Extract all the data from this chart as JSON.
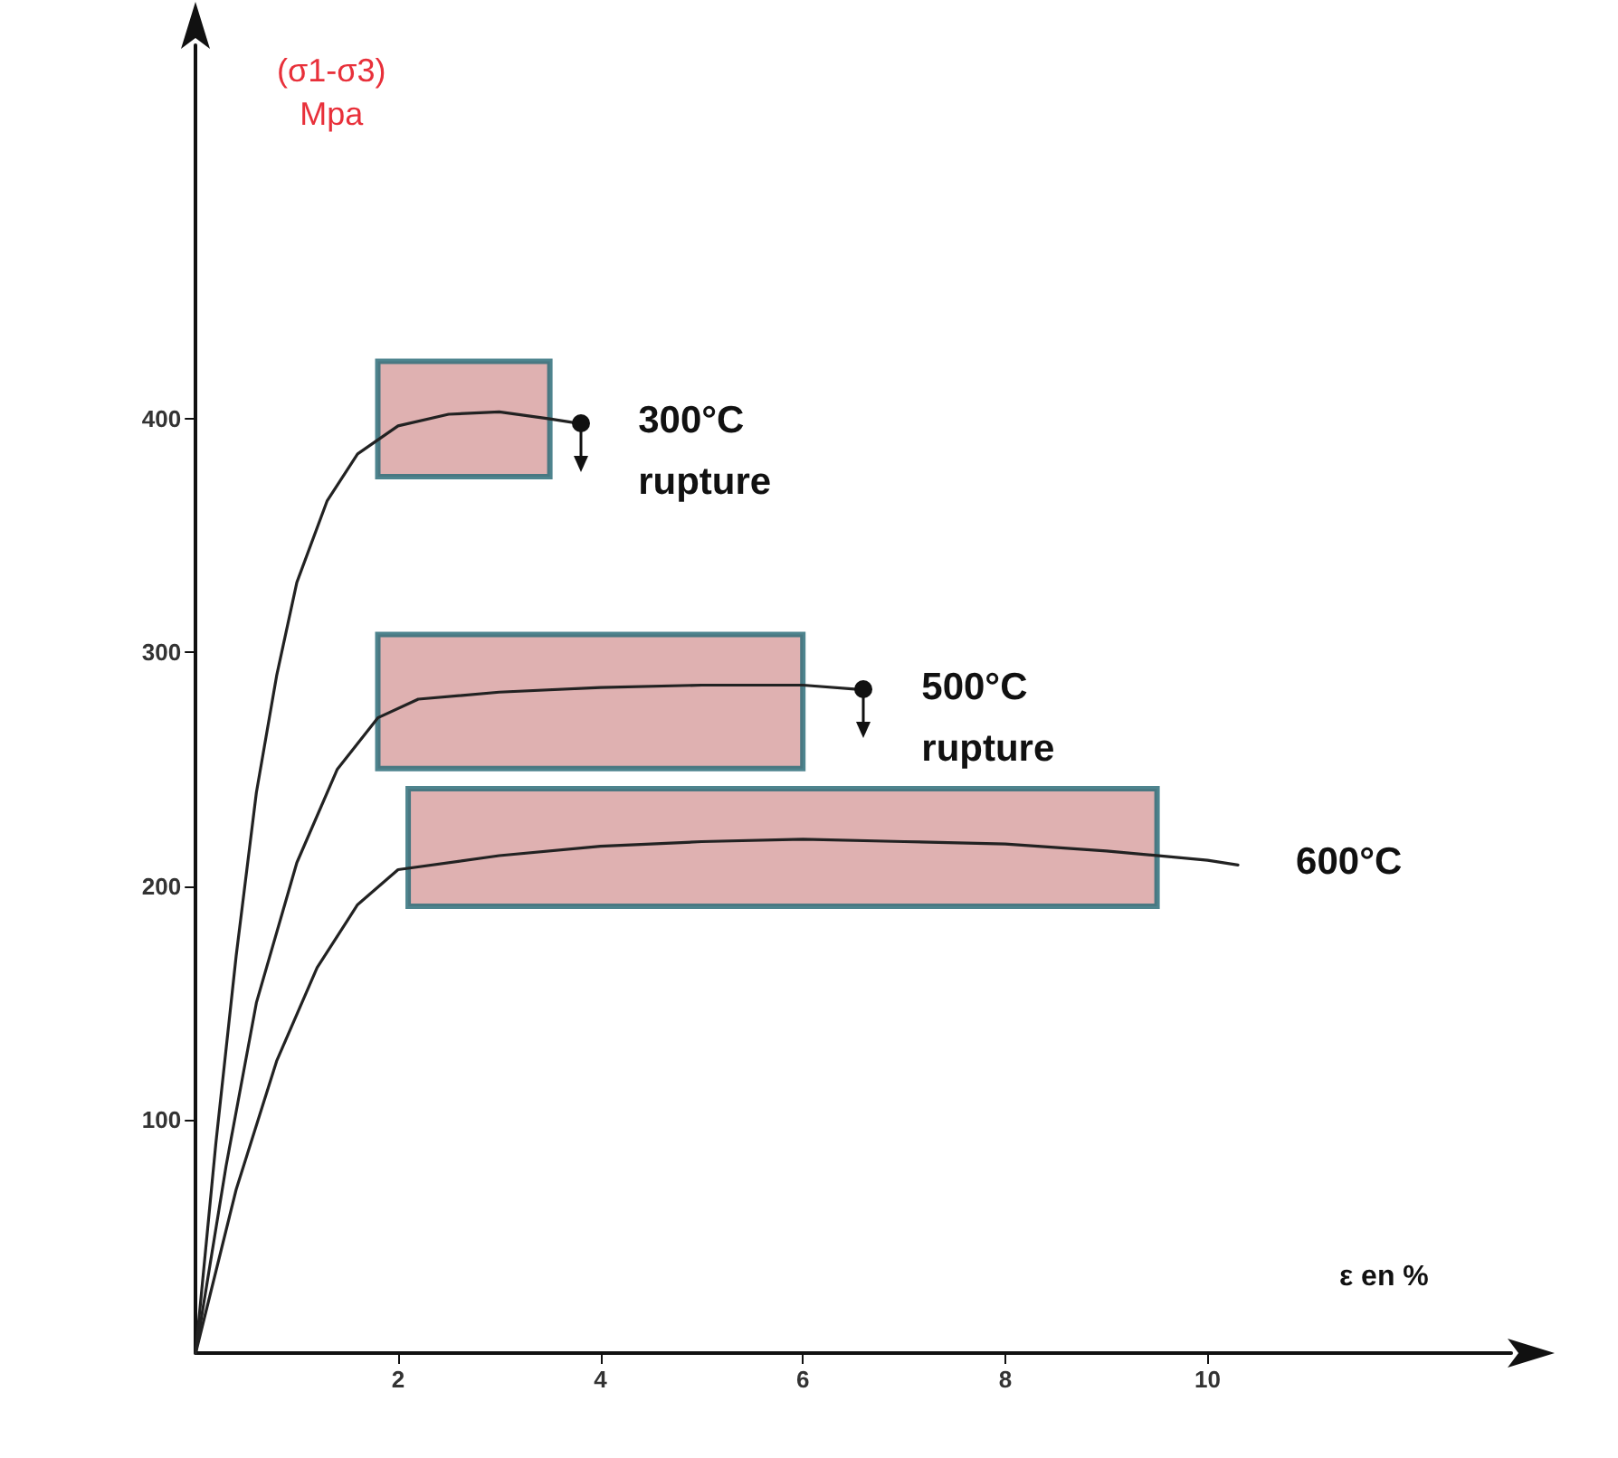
{
  "chart_data": {
    "type": "line",
    "xlabel": "ε en %",
    "ylabel": "(σ1-σ3)\nMpa",
    "xlim": [
      0,
      13
    ],
    "ylim": [
      0,
      560
    ],
    "xticks": [
      2,
      4,
      6,
      8,
      10
    ],
    "yticks": [
      100,
      200,
      300,
      400
    ],
    "grid": false,
    "legend": false,
    "marker": "none",
    "line_style": "solid",
    "series": [
      {
        "name": "300°C",
        "color": "#222222",
        "x": [
          0,
          0.2,
          0.4,
          0.6,
          0.8,
          1,
          1.3,
          1.6,
          2,
          2.5,
          3,
          3.5,
          3.8
        ],
        "values": [
          0,
          90,
          170,
          240,
          290,
          330,
          365,
          385,
          397,
          402,
          403,
          400,
          398
        ]
      },
      {
        "name": "500°C",
        "color": "#222222",
        "x": [
          0,
          0.3,
          0.6,
          1,
          1.4,
          1.8,
          2.2,
          3,
          4,
          5,
          6,
          6.6
        ],
        "values": [
          0,
          80,
          150,
          210,
          250,
          272,
          280,
          283,
          285,
          286,
          286,
          284
        ]
      },
      {
        "name": "600°C",
        "color": "#222222",
        "x": [
          0,
          0.4,
          0.8,
          1.2,
          1.6,
          2,
          3,
          4,
          5,
          6,
          7,
          8,
          9,
          10,
          10.3
        ],
        "values": [
          0,
          70,
          125,
          165,
          192,
          207,
          213,
          217,
          219,
          220,
          219,
          218,
          215,
          211,
          209
        ]
      }
    ],
    "bands": [
      {
        "axis": "x",
        "from": 1.8,
        "to": 3.5,
        "color": "#d9a3a3"
      },
      {
        "axis": "x",
        "from": 1.8,
        "to": 6.0,
        "color": "#d9a3a3"
      },
      {
        "axis": "x",
        "from": 2.1,
        "to": 9.5,
        "color": "#d9a3a3"
      }
    ],
    "annotations": [
      {
        "text": "rupture",
        "x": 3.8,
        "y": 398
      },
      {
        "text": "rupture",
        "x": 6.6,
        "y": 284
      }
    ]
  }
}
